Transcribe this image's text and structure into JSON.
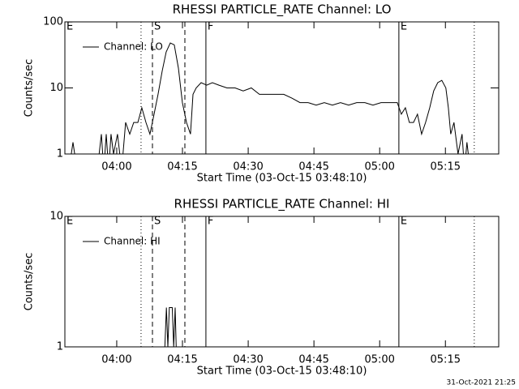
{
  "chart_data": [
    {
      "type": "line",
      "title": "RHESSI PARTICLE_RATE Channel: LO",
      "xlabel": "Start Time (03-Oct-15 03:48:10)",
      "ylabel": "Counts/sec",
      "log_y": true,
      "xlim": [
        0,
        5940
      ],
      "ylim": [
        1,
        100
      ],
      "yticks": [
        1,
        10,
        100
      ],
      "xticks": [
        {
          "value": 710,
          "label": "04:00"
        },
        {
          "value": 1610,
          "label": "04:15"
        },
        {
          "value": 2510,
          "label": "04:30"
        },
        {
          "value": 3410,
          "label": "04:45"
        },
        {
          "value": 4310,
          "label": "05:00"
        },
        {
          "value": 5210,
          "label": "05:15"
        }
      ],
      "vlines": [
        {
          "x": 1043,
          "style": "dotted"
        },
        {
          "x": 1199,
          "style": "dashed"
        },
        {
          "x": 1643,
          "style": "dashed"
        },
        {
          "x": 1931,
          "style": "solid"
        },
        {
          "x": 4573,
          "style": "solid"
        },
        {
          "x": 5605,
          "style": "dotted"
        }
      ],
      "annotations": [
        {
          "x": 0,
          "text": "E"
        },
        {
          "x": 1199,
          "text": "S"
        },
        {
          "x": 1931,
          "text": "F"
        },
        {
          "x": 4573,
          "text": "E"
        }
      ],
      "legend": "upper left",
      "x": [
        55,
        111,
        166,
        222,
        333,
        444,
        500,
        533,
        566,
        599,
        632,
        666,
        721,
        777,
        832,
        888,
        943,
        999,
        1054,
        1110,
        1165,
        1221,
        1276,
        1332,
        1387,
        1443,
        1498,
        1554,
        1609,
        1665,
        1720,
        1754,
        1798,
        1865,
        1942,
        2020,
        2109,
        2220,
        2331,
        2442,
        2553,
        2664,
        2775,
        2886,
        2997,
        3108,
        3219,
        3330,
        3441,
        3552,
        3663,
        3774,
        3885,
        3996,
        4107,
        4218,
        4329,
        4440,
        4551,
        4606,
        4662,
        4717,
        4773,
        4828,
        4884,
        4939,
        4995,
        5050,
        5105,
        5161,
        5216,
        5250,
        5283,
        5327,
        5383,
        5438,
        5472,
        5505,
        5549
      ],
      "series": [
        {
          "name": "Channel: LO",
          "color": "#000000",
          "values": [
            0,
            1.5,
            0,
            0,
            0,
            0,
            2,
            0,
            2,
            0,
            2,
            1,
            2,
            0,
            3,
            2,
            3,
            3,
            5,
            3,
            2,
            4,
            8,
            18,
            35,
            48,
            45,
            20,
            6,
            3,
            2,
            8,
            10,
            12,
            11,
            12,
            11,
            10,
            10,
            9,
            10,
            8,
            8,
            8,
            8,
            7,
            6,
            6,
            5.5,
            6,
            5.5,
            6,
            5.5,
            6,
            6,
            5.5,
            6,
            6,
            6,
            4,
            5,
            3,
            3,
            4,
            2,
            3,
            5,
            9,
            12,
            13,
            10,
            5,
            2,
            3,
            1,
            2,
            0,
            1.5,
            0
          ]
        }
      ]
    },
    {
      "type": "line",
      "title": "RHESSI PARTICLE_RATE Channel: HI",
      "xlabel": "Start Time (03-Oct-15 03:48:10)",
      "ylabel": "Counts/sec",
      "log_y": true,
      "xlim": [
        0,
        5940
      ],
      "ylim": [
        1,
        10
      ],
      "yticks": [
        1,
        10
      ],
      "xticks": [
        {
          "value": 710,
          "label": "04:00"
        },
        {
          "value": 1610,
          "label": "04:15"
        },
        {
          "value": 2510,
          "label": "04:30"
        },
        {
          "value": 3410,
          "label": "04:45"
        },
        {
          "value": 4310,
          "label": "05:00"
        },
        {
          "value": 5210,
          "label": "05:15"
        }
      ],
      "vlines": [
        {
          "x": 1043,
          "style": "dotted"
        },
        {
          "x": 1199,
          "style": "dashed"
        },
        {
          "x": 1643,
          "style": "dashed"
        },
        {
          "x": 1931,
          "style": "solid"
        },
        {
          "x": 4573,
          "style": "solid"
        },
        {
          "x": 5605,
          "style": "dotted"
        }
      ],
      "annotations": [
        {
          "x": 0,
          "text": "E"
        },
        {
          "x": 1199,
          "text": "S"
        },
        {
          "x": 1931,
          "text": "F"
        },
        {
          "x": 4573,
          "text": "E"
        }
      ],
      "legend": "upper left",
      "x": [
        0,
        1360,
        1390,
        1410,
        1430,
        1470,
        1490,
        1510,
        1530,
        5549
      ],
      "series": [
        {
          "name": "Channel: HI",
          "color": "#000000",
          "values": [
            0,
            0,
            2,
            1,
            2,
            2,
            1,
            2,
            0,
            0
          ]
        }
      ]
    }
  ],
  "footer": "31-Oct-2021 21:25"
}
